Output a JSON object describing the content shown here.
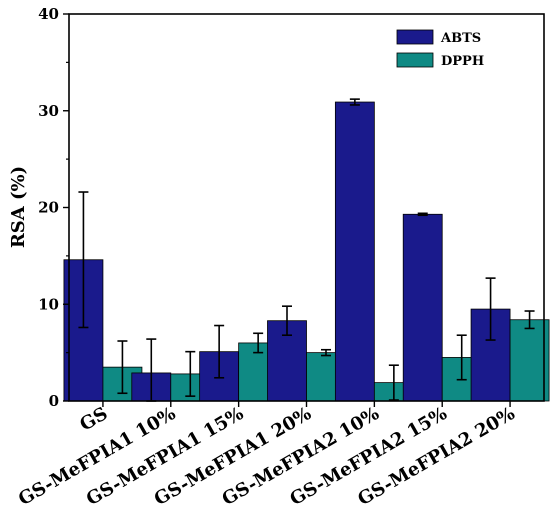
{
  "chart_data": {
    "type": "bar",
    "title": "",
    "xlabel": "",
    "ylabel": "RSA (%)",
    "ylim": [
      0,
      40
    ],
    "yticks": [
      0,
      10,
      20,
      30,
      40
    ],
    "categories": [
      "GS",
      "GS-MeFPIA1 10%",
      "GS-MeFPIA1 15%",
      "GS-MeFPIA1 20%",
      "GS-MeFPIA2 10%",
      "GS-MeFPIA2 15%",
      "GS-MeFPIA2 20%"
    ],
    "series": [
      {
        "name": "ABTS",
        "color": "#1a1a8c",
        "values": [
          14.6,
          2.9,
          5.1,
          8.3,
          30.9,
          19.3,
          9.5
        ],
        "errors": [
          7.0,
          3.5,
          2.7,
          1.5,
          0.3,
          0.1,
          3.2
        ]
      },
      {
        "name": "DPPH",
        "color": "#0f8a84",
        "values": [
          3.5,
          2.8,
          6.0,
          5.0,
          1.9,
          4.5,
          8.4
        ],
        "errors": [
          2.7,
          2.3,
          1.0,
          0.3,
          1.8,
          2.3,
          0.9
        ]
      }
    ],
    "legend_position": "top-right",
    "grid": false
  }
}
